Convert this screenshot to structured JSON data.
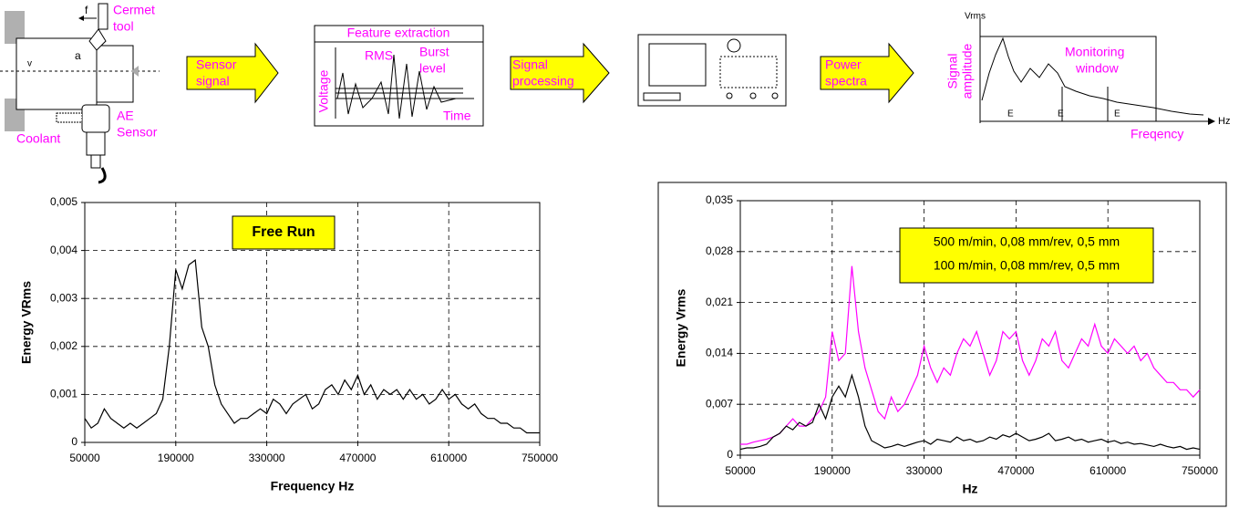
{
  "diagram": {
    "feed": "f",
    "tool": [
      "Cermet",
      "tool"
    ],
    "speed": "v",
    "depth": "a",
    "sensor": [
      "AE",
      "Sensor"
    ],
    "coolant": "Coolant",
    "step1": [
      "Sensor",
      "signal"
    ],
    "feature_title": "Feature extraction",
    "voltage": "Voltage",
    "rms": "RMS",
    "burst": [
      "Burst",
      "level"
    ],
    "time": "Time",
    "step2": [
      "Signal",
      "processing"
    ],
    "step3": [
      "Power",
      "spectra"
    ],
    "vrms": "Vrms",
    "amplitude": [
      "Signal",
      "amplitude"
    ],
    "window": [
      "Monitoring",
      "window"
    ],
    "bands": [
      "E",
      "E",
      "E"
    ],
    "hz": "Hz",
    "freq": "Freqency"
  },
  "chart_data": [
    {
      "type": "line",
      "xlabel": "Frequency Hz",
      "ylabel": "Energy VRms",
      "annotation": "Free Run",
      "color": "#000000",
      "grid": true,
      "xlim": [
        50000,
        750000
      ],
      "xticks": [
        50000,
        190000,
        330000,
        470000,
        610000,
        750000
      ],
      "ylim": [
        0,
        0.005
      ],
      "yticks": [
        0,
        {
          "value": 0.001,
          "label": "0,001"
        },
        {
          "value": 0.002,
          "label": "0,002"
        },
        {
          "value": 0.003,
          "label": "0,003"
        },
        {
          "value": 0.004,
          "label": "0,004"
        },
        {
          "value": 0.005,
          "label": "0,005"
        }
      ],
      "x": [
        50000,
        60000,
        70000,
        80000,
        90000,
        100000,
        110000,
        120000,
        130000,
        140000,
        150000,
        160000,
        170000,
        180000,
        190000,
        200000,
        210000,
        220000,
        230000,
        240000,
        250000,
        260000,
        270000,
        280000,
        290000,
        300000,
        310000,
        320000,
        330000,
        340000,
        350000,
        360000,
        370000,
        380000,
        390000,
        400000,
        410000,
        420000,
        430000,
        440000,
        450000,
        460000,
        470000,
        480000,
        490000,
        500000,
        510000,
        520000,
        530000,
        540000,
        550000,
        560000,
        570000,
        580000,
        590000,
        600000,
        610000,
        620000,
        630000,
        640000,
        650000,
        660000,
        670000,
        680000,
        690000,
        700000,
        710000,
        720000,
        730000,
        740000,
        750000
      ],
      "values": [
        0.0005,
        0.0003,
        0.0004,
        0.0007,
        0.0005,
        0.0004,
        0.0003,
        0.0004,
        0.0003,
        0.0004,
        0.0005,
        0.0006,
        0.0009,
        0.002,
        0.0036,
        0.0032,
        0.0037,
        0.0038,
        0.0024,
        0.002,
        0.0012,
        0.0008,
        0.0006,
        0.0004,
        0.0005,
        0.0005,
        0.0006,
        0.0007,
        0.0006,
        0.0009,
        0.0008,
        0.0006,
        0.0008,
        0.0009,
        0.001,
        0.0007,
        0.0008,
        0.0011,
        0.0012,
        0.001,
        0.0013,
        0.0011,
        0.0014,
        0.001,
        0.0012,
        0.0009,
        0.0011,
        0.001,
        0.0011,
        0.0009,
        0.0011,
        0.0009,
        0.001,
        0.0008,
        0.0009,
        0.0011,
        0.0009,
        0.001,
        0.0008,
        0.0007,
        0.0008,
        0.0006,
        0.0005,
        0.0005,
        0.0004,
        0.0004,
        0.0003,
        0.0003,
        0.0002,
        0.0002,
        0.0002
      ]
    },
    {
      "type": "line",
      "xlabel": "Hz",
      "ylabel": "Energy Vrms",
      "grid": true,
      "xlim": [
        50000,
        750000
      ],
      "xticks": [
        50000,
        190000,
        330000,
        470000,
        610000,
        750000
      ],
      "ylim": [
        0,
        0.035
      ],
      "yticks": [
        0,
        {
          "value": 0.007,
          "label": "0,007"
        },
        {
          "value": 0.014,
          "label": "0,014"
        },
        {
          "value": 0.021,
          "label": "0,021"
        },
        {
          "value": 0.028,
          "label": "0,028"
        },
        {
          "value": 0.035,
          "label": "0,035"
        }
      ],
      "x": [
        50000,
        60000,
        70000,
        80000,
        90000,
        100000,
        110000,
        120000,
        130000,
        140000,
        150000,
        160000,
        170000,
        180000,
        190000,
        200000,
        210000,
        220000,
        230000,
        240000,
        250000,
        260000,
        270000,
        280000,
        290000,
        300000,
        310000,
        320000,
        330000,
        340000,
        350000,
        360000,
        370000,
        380000,
        390000,
        400000,
        410000,
        420000,
        430000,
        440000,
        450000,
        460000,
        470000,
        480000,
        490000,
        500000,
        510000,
        520000,
        530000,
        540000,
        550000,
        560000,
        570000,
        580000,
        590000,
        600000,
        610000,
        620000,
        630000,
        640000,
        650000,
        660000,
        670000,
        680000,
        690000,
        700000,
        710000,
        720000,
        730000,
        740000,
        750000
      ],
      "series": [
        {
          "name": "500 m/min, 0,08 mm/rev, 0,5 mm",
          "color": "#ff00ff",
          "values": [
            0.0015,
            0.0015,
            0.0018,
            0.002,
            0.0022,
            0.0025,
            0.003,
            0.004,
            0.005,
            0.004,
            0.004,
            0.005,
            0.006,
            0.008,
            0.017,
            0.013,
            0.014,
            0.026,
            0.017,
            0.012,
            0.009,
            0.006,
            0.005,
            0.008,
            0.006,
            0.007,
            0.009,
            0.011,
            0.015,
            0.012,
            0.01,
            0.012,
            0.011,
            0.014,
            0.016,
            0.015,
            0.017,
            0.014,
            0.011,
            0.013,
            0.017,
            0.016,
            0.017,
            0.013,
            0.011,
            0.013,
            0.016,
            0.015,
            0.017,
            0.013,
            0.012,
            0.014,
            0.016,
            0.015,
            0.018,
            0.015,
            0.014,
            0.016,
            0.015,
            0.014,
            0.015,
            0.013,
            0.014,
            0.012,
            0.011,
            0.01,
            0.01,
            0.009,
            0.009,
            0.008,
            0.009
          ]
        },
        {
          "name": "100 m/min, 0,08 mm/rev, 0,5 mm",
          "color": "#000000",
          "values": [
            0.0008,
            0.001,
            0.001,
            0.0012,
            0.0015,
            0.0025,
            0.003,
            0.004,
            0.0035,
            0.0045,
            0.004,
            0.0045,
            0.007,
            0.005,
            0.008,
            0.0095,
            0.008,
            0.011,
            0.008,
            0.004,
            0.002,
            0.0015,
            0.001,
            0.0012,
            0.0015,
            0.0012,
            0.0015,
            0.0018,
            0.002,
            0.0015,
            0.0022,
            0.002,
            0.0018,
            0.0025,
            0.002,
            0.0022,
            0.0018,
            0.002,
            0.0025,
            0.0022,
            0.0028,
            0.0025,
            0.003,
            0.0025,
            0.002,
            0.0022,
            0.0025,
            0.003,
            0.002,
            0.0022,
            0.0025,
            0.002,
            0.0022,
            0.0018,
            0.002,
            0.0022,
            0.0018,
            0.002,
            0.0016,
            0.0018,
            0.0015,
            0.0016,
            0.0014,
            0.0012,
            0.0015,
            0.0012,
            0.001,
            0.0012,
            0.0008,
            0.001,
            0.0008
          ]
        }
      ]
    }
  ]
}
